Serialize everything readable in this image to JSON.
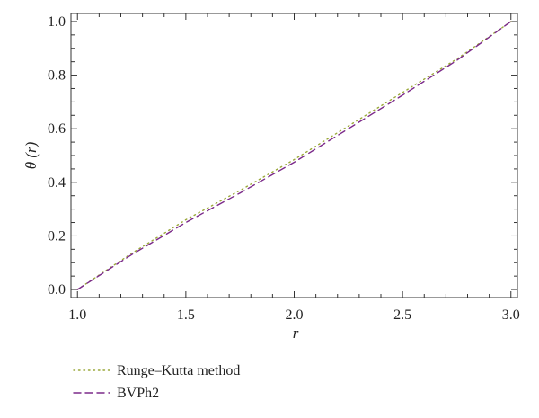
{
  "chart_data": {
    "type": "line",
    "xlabel": "r",
    "ylabel": "θ (r)",
    "xlim": [
      0.97,
      3.03
    ],
    "ylim": [
      -0.03,
      1.03
    ],
    "xticks": [
      "1.0",
      "1.5",
      "2.0",
      "2.5",
      "3.0"
    ],
    "yticks": [
      "0.0",
      "0.2",
      "0.4",
      "0.6",
      "0.8",
      "1.0"
    ],
    "grid": false,
    "legend_position": "bottom-left",
    "series": [
      {
        "name": "Runge–Kutta method",
        "style": "dotted",
        "color": "#9aa83a",
        "x": [
          1.0,
          1.25,
          1.5,
          1.75,
          2.0,
          2.25,
          2.5,
          2.75,
          3.0
        ],
        "y": [
          0.0,
          0.135,
          0.26,
          0.37,
          0.485,
          0.61,
          0.735,
          0.86,
          1.0
        ]
      },
      {
        "name": "BVPh2",
        "style": "dashed",
        "color": "#7b2a8a",
        "x": [
          1.0,
          1.25,
          1.5,
          1.75,
          2.0,
          2.25,
          2.5,
          2.75,
          3.0
        ],
        "y": [
          0.0,
          0.13,
          0.25,
          0.36,
          0.475,
          0.6,
          0.725,
          0.855,
          1.0
        ]
      }
    ]
  }
}
